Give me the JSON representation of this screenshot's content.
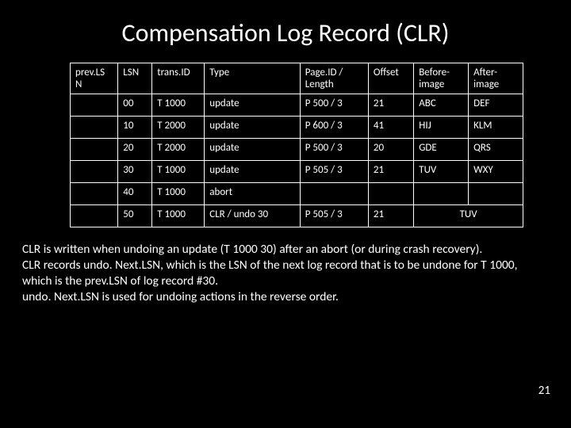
{
  "title": "Compensation Log Record (CLR)",
  "table": {
    "columns": [
      "prev.LS N",
      "LSN",
      "trans.ID",
      "Type",
      "Page.ID / Length",
      "Offset",
      "Before-image",
      "After-image"
    ],
    "rows": [
      {
        "cells": [
          "",
          "00",
          "T 1000",
          "update",
          "P 500 / 3",
          "21",
          "ABC",
          "DEF"
        ]
      },
      {
        "cells": [
          "",
          "10",
          "T 2000",
          "update",
          "P 600 / 3",
          "41",
          "HIJ",
          "KLM"
        ]
      },
      {
        "cells": [
          "",
          "20",
          "T 2000",
          "update",
          "P 500 / 3",
          "20",
          "GDE",
          "QRS"
        ]
      },
      {
        "cells": [
          "",
          "30",
          "T 1000",
          "update",
          "P 505 / 3",
          "21",
          "TUV",
          "WXY"
        ]
      },
      {
        "cells": [
          "",
          "40",
          "T 1000",
          "abort",
          "",
          "",
          "",
          ""
        ]
      },
      {
        "cells_special": [
          "",
          "50",
          "T 1000",
          "CLR / undo 30",
          "P 505 / 3",
          "21"
        ],
        "merged": "TUV"
      }
    ]
  },
  "body": "CLR is written when undoing an update (T 1000 30) after an abort (or during crash recovery).\nCLR records undo. Next.LSN, which is the LSN of the next log record that is to be undone for T 1000, which is the prev.LSN of log record #30.\nundo. Next.LSN is used for undoing actions in the reverse order.",
  "pageNumber": "21",
  "styling": {
    "background_color": "#000000",
    "text_color": "#ffffff",
    "border_color": "#ffffff",
    "title_fontsize": 32,
    "cell_fontsize": 13,
    "body_fontsize": 15.5,
    "font_family": "Calibri"
  }
}
